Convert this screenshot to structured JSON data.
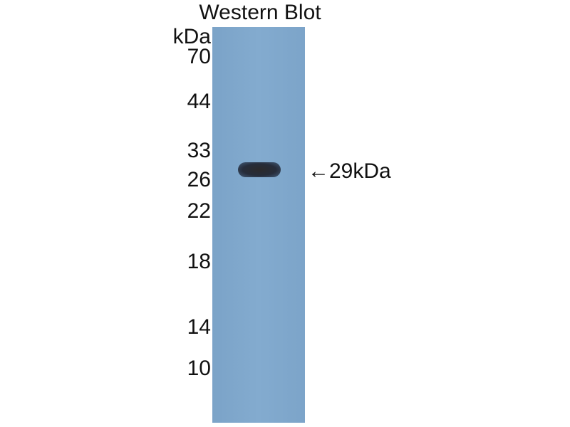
{
  "title": "Western Blot",
  "unit_label": "kDa",
  "markers": [
    "70",
    "44",
    "33",
    "26",
    "22",
    "18",
    "14",
    "10"
  ],
  "band_annotation": {
    "arrow": "←",
    "label": "29kDa"
  },
  "colors": {
    "membrane": "#80a8cc",
    "band": "#2a2d36"
  }
}
